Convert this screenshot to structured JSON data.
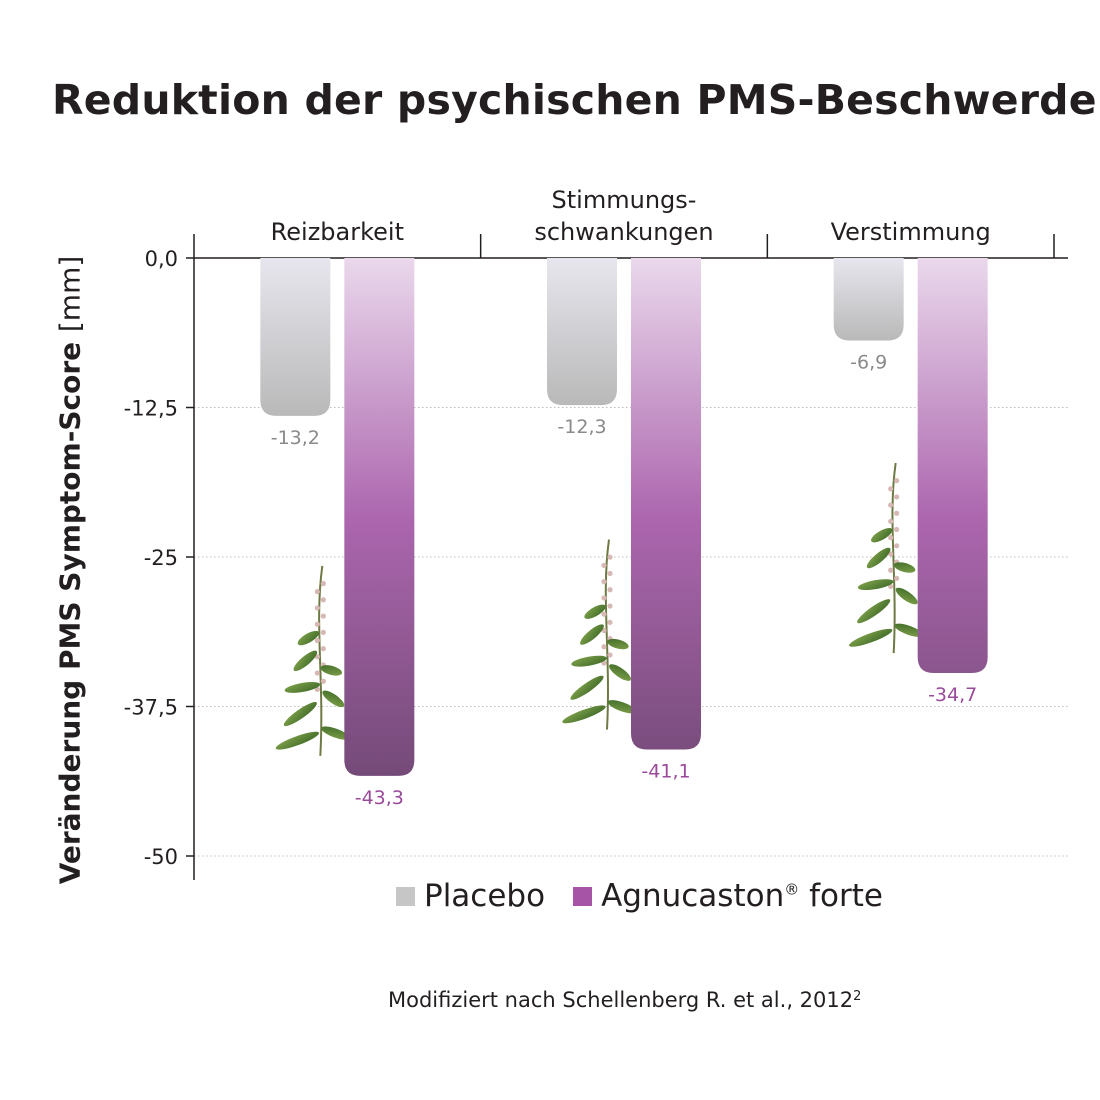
{
  "title": "Reduktion der psychischen PMS-Beschwerden",
  "source": "Modifiziert nach Schellenberg R. et al., 2012",
  "source_sup": "2",
  "colors": {
    "placebo": "#c6c6c6",
    "agnucaston": "#a655a6",
    "placebo_label": "#8a8a8a",
    "agnucaston_label": "#9b4a9b"
  },
  "chart_data": {
    "type": "bar",
    "title": "Reduktion der psychischen PMS-Beschwerden",
    "ylabel_main": "Veränderung PMS Symptom-Score",
    "ylabel_unit": "[mm]",
    "ylim": [
      -50,
      0
    ],
    "yticks": [
      0,
      -12.5,
      -25,
      -37.5,
      -50
    ],
    "ytick_labels": [
      "0,0",
      "-12,5",
      "-25",
      "-37,5",
      "-50"
    ],
    "grid": true,
    "legend_position": "bottom",
    "categories": [
      {
        "label_lines": [
          "Reizbarkeit"
        ]
      },
      {
        "label_lines": [
          "Stimmungs-",
          "schwankungen"
        ]
      },
      {
        "label_lines": [
          "Verstimmung"
        ]
      }
    ],
    "series": [
      {
        "name": "Placebo",
        "values": [
          -13.2,
          -12.3,
          -6.9
        ],
        "value_labels": [
          "-13,2",
          "-12,3",
          "-6,9"
        ]
      },
      {
        "name": "Agnucaston",
        "name_sup": "®",
        "name_suffix": " forte",
        "values": [
          -43.3,
          -41.1,
          -34.7
        ],
        "value_labels": [
          "-43,3",
          "-41,1",
          "-34,7"
        ]
      }
    ]
  }
}
